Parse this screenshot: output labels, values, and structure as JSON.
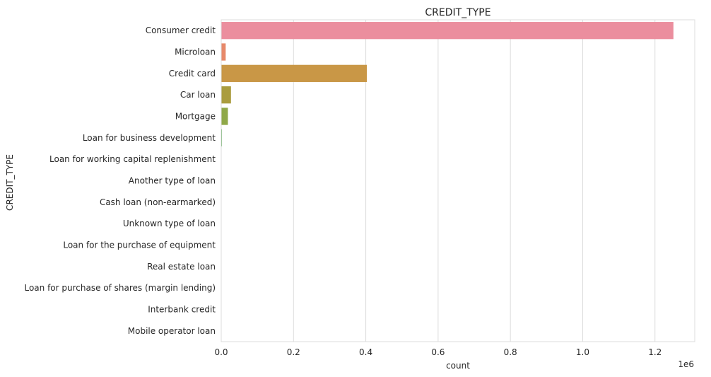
{
  "chart_data": {
    "type": "bar",
    "orientation": "horizontal",
    "title": "CREDIT_TYPE",
    "xlabel": "count",
    "ylabel": "CREDIT_TYPE",
    "x_scale_label": "1e6",
    "xlim": [
      0,
      1.31
    ],
    "x_ticks": [
      0,
      0.2,
      0.4,
      0.6,
      0.8,
      1.0,
      1.2
    ],
    "x_tick_labels": [
      "0.0",
      "0.2",
      "0.4",
      "0.6",
      "0.8",
      "1.0",
      "1.2"
    ],
    "grid": true,
    "categories": [
      "Consumer credit",
      "Microloan",
      "Credit card",
      "Car loan",
      "Mortgage",
      "Loan for business development",
      "Loan for working capital replenishment",
      "Another type of loan",
      "Cash loan (non-earmarked)",
      "Unknown type of loan",
      "Loan for the purchase of equipment",
      "Real estate loan",
      "Loan for purchase of shares (margin lending)",
      "Interbank credit",
      "Mobile operator loan"
    ],
    "values": [
      1.251,
      0.0124,
      0.4029,
      0.027,
      0.0185,
      0.002,
      0.0005,
      0.001,
      0.0001,
      0.0006,
      2e-05,
      3e-05,
      5e-06,
      1e-06,
      1e-06
    ],
    "colors": [
      "#eb8e9e",
      "#e7896a",
      "#c99746",
      "#aa9c3e",
      "#8fa848",
      "#5fae5a",
      "#3fae87",
      "#3eab9e",
      "#3ea9b1",
      "#41a6c7",
      "#6a9fe0",
      "#9e94e8",
      "#c487e3",
      "#e180d2",
      "#ea84b5"
    ]
  }
}
